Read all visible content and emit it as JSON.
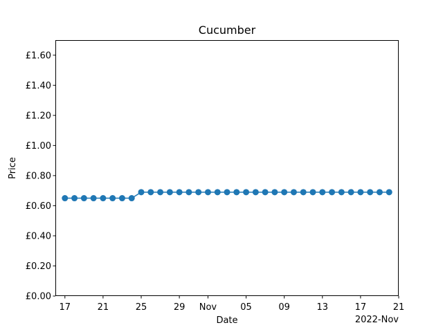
{
  "chart_data": {
    "type": "line",
    "title": "Cucumber",
    "xlabel": "Date",
    "ylabel": "Price",
    "x_offset_label": "2022-Nov",
    "ylim": [
      0,
      1.7
    ],
    "xlim": [
      "2022-10-16",
      "2022-11-21"
    ],
    "grid": false,
    "x_ticks": [
      {
        "date": "2022-10-17",
        "label": "17"
      },
      {
        "date": "2022-10-21",
        "label": "21"
      },
      {
        "date": "2022-10-25",
        "label": "25"
      },
      {
        "date": "2022-10-29",
        "label": "29"
      },
      {
        "date": "2022-11-01",
        "label": "Nov"
      },
      {
        "date": "2022-11-05",
        "label": "05"
      },
      {
        "date": "2022-11-09",
        "label": "09"
      },
      {
        "date": "2022-11-13",
        "label": "13"
      },
      {
        "date": "2022-11-17",
        "label": "17"
      },
      {
        "date": "2022-11-21",
        "label": "21"
      }
    ],
    "y_ticks": [
      {
        "value": 0.0,
        "label": "£0.00"
      },
      {
        "value": 0.2,
        "label": "£0.20"
      },
      {
        "value": 0.4,
        "label": "£0.40"
      },
      {
        "value": 0.6,
        "label": "£0.60"
      },
      {
        "value": 0.8,
        "label": "£0.80"
      },
      {
        "value": 1.0,
        "label": "£1.00"
      },
      {
        "value": 1.2,
        "label": "£1.20"
      },
      {
        "value": 1.4,
        "label": "£1.40"
      },
      {
        "value": 1.6,
        "label": "£1.60"
      }
    ],
    "series": [
      {
        "color": "#1f77b4",
        "marker": "circle",
        "points": [
          {
            "x": "2022-10-17",
            "y": 0.65
          },
          {
            "x": "2022-10-18",
            "y": 0.65
          },
          {
            "x": "2022-10-19",
            "y": 0.65
          },
          {
            "x": "2022-10-20",
            "y": 0.65
          },
          {
            "x": "2022-10-21",
            "y": 0.65
          },
          {
            "x": "2022-10-22",
            "y": 0.65
          },
          {
            "x": "2022-10-23",
            "y": 0.65
          },
          {
            "x": "2022-10-24",
            "y": 0.65
          },
          {
            "x": "2022-10-25",
            "y": 0.69
          },
          {
            "x": "2022-10-26",
            "y": 0.69
          },
          {
            "x": "2022-10-27",
            "y": 0.69
          },
          {
            "x": "2022-10-28",
            "y": 0.69
          },
          {
            "x": "2022-10-29",
            "y": 0.69
          },
          {
            "x": "2022-10-30",
            "y": 0.69
          },
          {
            "x": "2022-10-31",
            "y": 0.69
          },
          {
            "x": "2022-11-01",
            "y": 0.69
          },
          {
            "x": "2022-11-02",
            "y": 0.69
          },
          {
            "x": "2022-11-03",
            "y": 0.69
          },
          {
            "x": "2022-11-04",
            "y": 0.69
          },
          {
            "x": "2022-11-05",
            "y": 0.69
          },
          {
            "x": "2022-11-06",
            "y": 0.69
          },
          {
            "x": "2022-11-07",
            "y": 0.69
          },
          {
            "x": "2022-11-08",
            "y": 0.69
          },
          {
            "x": "2022-11-09",
            "y": 0.69
          },
          {
            "x": "2022-11-10",
            "y": 0.69
          },
          {
            "x": "2022-11-11",
            "y": 0.69
          },
          {
            "x": "2022-11-12",
            "y": 0.69
          },
          {
            "x": "2022-11-13",
            "y": 0.69
          },
          {
            "x": "2022-11-14",
            "y": 0.69
          },
          {
            "x": "2022-11-15",
            "y": 0.69
          },
          {
            "x": "2022-11-16",
            "y": 0.69
          },
          {
            "x": "2022-11-17",
            "y": 0.69
          },
          {
            "x": "2022-11-18",
            "y": 0.69
          },
          {
            "x": "2022-11-19",
            "y": 0.69
          },
          {
            "x": "2022-11-20",
            "y": 0.69
          }
        ]
      }
    ]
  }
}
